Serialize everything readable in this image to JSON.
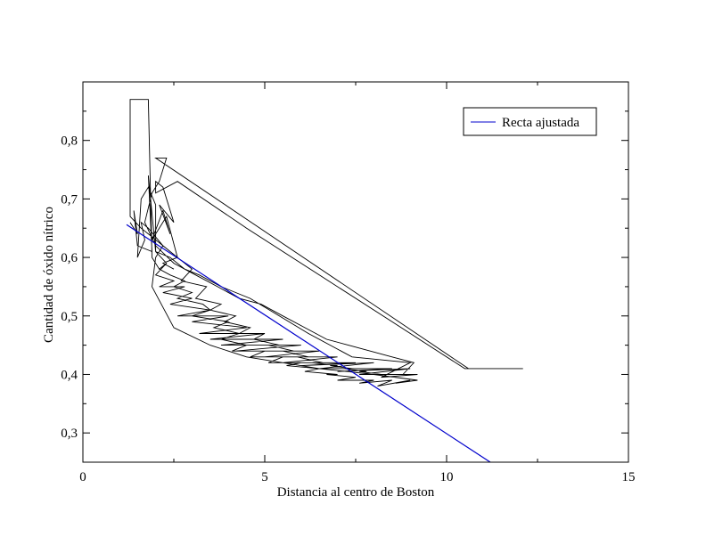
{
  "chart_data": {
    "type": "line",
    "title": "",
    "xlabel": "Distancia al centro de Boston",
    "ylabel": "Cantidad de óxido nítrico",
    "xlim": [
      0,
      15
    ],
    "ylim": [
      0.25,
      0.9
    ],
    "x_ticks": [
      0,
      5,
      10,
      15
    ],
    "x_tick_labels": [
      "0",
      "5",
      "10",
      "15"
    ],
    "y_ticks": [
      0.3,
      0.4,
      0.5,
      0.6,
      0.7,
      0.8
    ],
    "y_tick_labels": [
      "0,3",
      "0,4",
      "0,5",
      "0,6",
      "0,7",
      "0,8"
    ],
    "grid": false,
    "legend_position": "top-right",
    "colors": {
      "data": "#000000",
      "fit": "#0000cc",
      "frame": "#000000"
    },
    "series": [
      {
        "color": "#000000",
        "x": [
          1.3,
          1.5,
          1.4,
          1.5,
          1.9,
          1.8,
          2.0,
          2.3,
          2.1,
          2.4,
          2.8,
          2.5,
          3.0,
          2.6,
          3.3,
          3.5,
          3.0,
          4.0,
          3.6,
          4.3,
          3.8,
          4.5,
          4.1,
          5.0,
          4.6,
          5.5,
          5.1,
          6.0,
          5.6,
          6.5,
          6.1,
          7.0,
          6.7,
          7.5,
          7.0,
          8.0,
          7.6,
          8.5,
          8.1,
          9.0,
          8.6,
          9.2,
          8.0,
          6.5,
          5.5,
          4.5,
          3.5,
          2.5,
          1.9,
          2.0,
          2.2,
          1.6,
          1.3,
          1.3,
          1.7,
          1.8,
          1.9,
          2.1,
          2.3,
          2.0,
          2.5,
          2.1,
          2.8,
          2.2,
          3.0,
          2.4,
          3.5,
          2.6,
          4.0,
          3.0,
          4.5,
          3.2,
          5.0,
          3.5,
          5.5,
          3.8,
          6.0,
          4.2,
          6.5,
          5.0,
          7.0,
          5.5,
          7.5,
          6.0,
          8.0,
          6.5,
          8.5,
          7.0,
          9.0,
          7.6,
          9.2,
          8.2,
          9.0,
          7.4,
          6.8,
          6.2,
          5.4,
          4.6,
          3.8,
          3.2,
          2.8,
          2.4,
          2.0,
          2.0,
          1.8,
          1.6,
          1.5,
          1.7,
          1.6,
          1.8,
          2.2,
          2.6,
          3.0,
          2.7,
          3.4,
          3.1,
          3.8,
          3.5,
          4.2,
          3.9,
          4.6,
          4.3,
          5.0,
          4.7,
          5.4,
          5.1,
          5.8,
          5.5,
          6.2,
          5.9,
          6.6,
          6.3,
          7.0,
          6.8,
          7.4,
          7.2,
          7.8,
          7.6,
          8.2,
          8.0,
          8.6,
          8.4,
          9.0,
          8.8,
          9.1,
          8.5,
          7.9,
          7.3,
          6.7,
          6.1,
          5.5,
          4.9,
          4.3,
          3.7,
          3.1,
          2.5,
          2.0,
          1.7,
          1.9,
          2.1,
          2.3,
          2.0,
          10.6,
          11.2,
          12.1,
          10.5,
          8.5,
          6.5,
          4.5,
          2.6,
          2.0,
          2.0,
          2.2,
          2.5,
          2.1,
          2.4,
          2.2,
          1.9,
          2.3,
          2.6,
          2.2,
          2.5
        ],
        "y": [
          0.66,
          0.64,
          0.68,
          0.62,
          0.61,
          0.74,
          0.61,
          0.59,
          0.58,
          0.57,
          0.56,
          0.55,
          0.54,
          0.53,
          0.52,
          0.51,
          0.5,
          0.49,
          0.48,
          0.47,
          0.46,
          0.45,
          0.44,
          0.44,
          0.43,
          0.43,
          0.42,
          0.42,
          0.415,
          0.41,
          0.405,
          0.4,
          0.4,
          0.395,
          0.39,
          0.39,
          0.385,
          0.39,
          0.38,
          0.39,
          0.385,
          0.39,
          0.4,
          0.41,
          0.42,
          0.43,
          0.45,
          0.48,
          0.55,
          0.6,
          0.62,
          0.65,
          0.67,
          0.87,
          0.87,
          0.87,
          0.6,
          0.58,
          0.59,
          0.57,
          0.56,
          0.55,
          0.55,
          0.54,
          0.53,
          0.52,
          0.51,
          0.5,
          0.5,
          0.49,
          0.48,
          0.47,
          0.47,
          0.46,
          0.46,
          0.45,
          0.45,
          0.44,
          0.44,
          0.43,
          0.43,
          0.42,
          0.42,
          0.415,
          0.42,
          0.41,
          0.41,
          0.405,
          0.41,
          0.4,
          0.4,
          0.395,
          0.42,
          0.43,
          0.45,
          0.47,
          0.5,
          0.53,
          0.55,
          0.57,
          0.58,
          0.6,
          0.61,
          0.69,
          0.72,
          0.7,
          0.6,
          0.63,
          0.66,
          0.65,
          0.62,
          0.6,
          0.58,
          0.56,
          0.55,
          0.53,
          0.52,
          0.51,
          0.5,
          0.49,
          0.48,
          0.47,
          0.47,
          0.46,
          0.45,
          0.45,
          0.44,
          0.44,
          0.43,
          0.43,
          0.42,
          0.42,
          0.415,
          0.415,
          0.41,
          0.41,
          0.405,
          0.405,
          0.4,
          0.4,
          0.4,
          0.4,
          0.4,
          0.4,
          0.42,
          0.43,
          0.44,
          0.45,
          0.46,
          0.48,
          0.5,
          0.52,
          0.53,
          0.55,
          0.57,
          0.59,
          0.62,
          0.66,
          0.71,
          0.73,
          0.77,
          0.77,
          0.41,
          0.41,
          0.41,
          0.41,
          0.49,
          0.57,
          0.65,
          0.73,
          0.71,
          0.73,
          0.72,
          0.66,
          0.69,
          0.64,
          0.68,
          0.63,
          0.67,
          0.6,
          0.59,
          0.58
        ]
      },
      {
        "name": "Recta ajustada",
        "color": "#0000cc",
        "x": [
          1.2,
          11.2
        ],
        "y": [
          0.656,
          0.25
        ]
      }
    ]
  }
}
